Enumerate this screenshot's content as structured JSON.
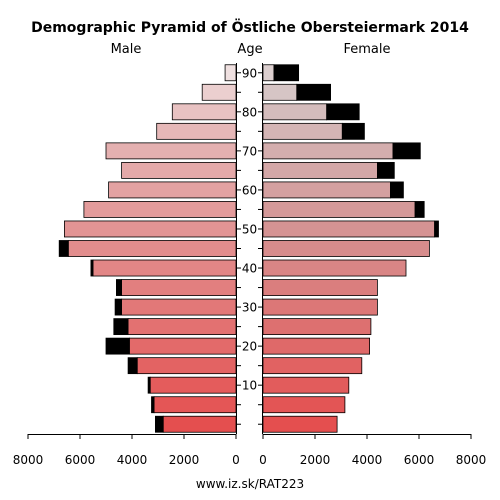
{
  "chart_data": {
    "type": "bar",
    "title": "Demographic Pyramid of Östliche Obersteiermark 2014",
    "male_label": "Male",
    "female_label": "Female",
    "age_label": "Age",
    "source": "www.iz.sk/RAT223",
    "x_ticks": [
      "8000",
      "6000",
      "4000",
      "2000",
      "0",
      "0",
      "2000",
      "4000",
      "6000",
      "8000"
    ],
    "x_tick_values": [
      8000,
      6000,
      4000,
      2000,
      0,
      0,
      2000,
      4000,
      6000,
      8000
    ],
    "xlim": [
      0,
      8000
    ],
    "age_ticks": [
      "10",
      "20",
      "30",
      "40",
      "50",
      "60",
      "70",
      "80",
      "90"
    ],
    "age_tick_values": [
      10,
      20,
      30,
      40,
      50,
      60,
      70,
      80,
      90
    ],
    "age_groups": [
      "0-4",
      "5-9",
      "10-14",
      "15-19",
      "20-24",
      "25-29",
      "30-34",
      "35-39",
      "40-44",
      "45-49",
      "50-54",
      "55-59",
      "60-64",
      "65-69",
      "70-74",
      "75-79",
      "80-84",
      "85-89",
      "90+"
    ],
    "age_group_starts": [
      0,
      5,
      10,
      15,
      20,
      25,
      30,
      35,
      40,
      45,
      50,
      55,
      60,
      65,
      70,
      75,
      80,
      85,
      90
    ],
    "series": [
      {
        "name": "Male",
        "values": [
          2800,
          3150,
          3300,
          3800,
          4100,
          4150,
          4400,
          4400,
          5500,
          6450,
          6600,
          5850,
          4900,
          4400,
          5000,
          3050,
          2450,
          1300,
          420
        ]
      },
      {
        "name": "Male surplus",
        "values": [
          300,
          100,
          80,
          350,
          900,
          550,
          250,
          200,
          80,
          350,
          0,
          0,
          0,
          0,
          0,
          0,
          0,
          0,
          0
        ]
      },
      {
        "name": "Female",
        "values": [
          2850,
          3150,
          3300,
          3800,
          4100,
          4150,
          4400,
          4400,
          5500,
          6400,
          6600,
          5850,
          4900,
          4400,
          5000,
          3050,
          2450,
          1300,
          420
        ]
      },
      {
        "name": "Female surplus",
        "values": [
          0,
          0,
          0,
          0,
          0,
          0,
          0,
          0,
          0,
          0,
          150,
          350,
          500,
          650,
          1050,
          850,
          1250,
          1300,
          950
        ]
      }
    ],
    "male_colors": [
      "#e44f4f",
      "#e45656",
      "#e45c5c",
      "#e36363",
      "#e36a6a",
      "#e37171",
      "#e27878",
      "#e27f7f",
      "#e28686",
      "#e28d8d",
      "#e29494",
      "#e39b9b",
      "#e3a2a2",
      "#e4a9a9",
      "#e4b0b0",
      "#e6b8b8",
      "#e8c2c2",
      "#ebcfcf",
      "#efe0e0"
    ],
    "female_colors": [
      "#e44f4f",
      "#e35555",
      "#e25c5c",
      "#e16262",
      "#df6969",
      "#dd7070",
      "#dc7777",
      "#da7e7e",
      "#d98585",
      "#d78c8c",
      "#d59393",
      "#d49999",
      "#d4a0a0",
      "#d4a7a7",
      "#d4aeae",
      "#d4b5b5",
      "#d4bcbc",
      "#d6c5c5",
      "#dccfcf"
    ],
    "surplus_color": "#000000",
    "grid": false
  }
}
